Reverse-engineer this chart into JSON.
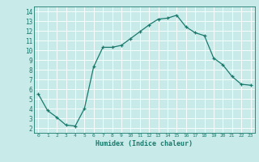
{
  "x": [
    0,
    1,
    2,
    3,
    4,
    5,
    6,
    7,
    8,
    9,
    10,
    11,
    12,
    13,
    14,
    15,
    16,
    17,
    18,
    19,
    20,
    21,
    22,
    23
  ],
  "y": [
    5.5,
    3.8,
    3.1,
    2.3,
    2.2,
    4.0,
    8.3,
    10.3,
    10.3,
    10.5,
    11.2,
    11.9,
    12.6,
    13.2,
    13.3,
    13.6,
    12.4,
    11.8,
    11.5,
    9.2,
    8.5,
    7.3,
    6.5,
    6.4
  ],
  "xlabel": "Humidex (Indice chaleur)",
  "xlim": [
    -0.5,
    23.5
  ],
  "ylim": [
    1.5,
    14.5
  ],
  "yticks": [
    2,
    3,
    4,
    5,
    6,
    7,
    8,
    9,
    10,
    11,
    12,
    13,
    14
  ],
  "xticks": [
    0,
    1,
    2,
    3,
    4,
    5,
    6,
    7,
    8,
    9,
    10,
    11,
    12,
    13,
    14,
    15,
    16,
    17,
    18,
    19,
    20,
    21,
    22,
    23
  ],
  "line_color": "#1a7a6e",
  "marker_color": "#1a7a6e",
  "bg_color": "#c8eae8",
  "grid_color": "#b0d8d4",
  "axis_label_color": "#1a7a6e",
  "tick_label_color": "#1a7a6e",
  "spine_color": "#1a7a6e"
}
